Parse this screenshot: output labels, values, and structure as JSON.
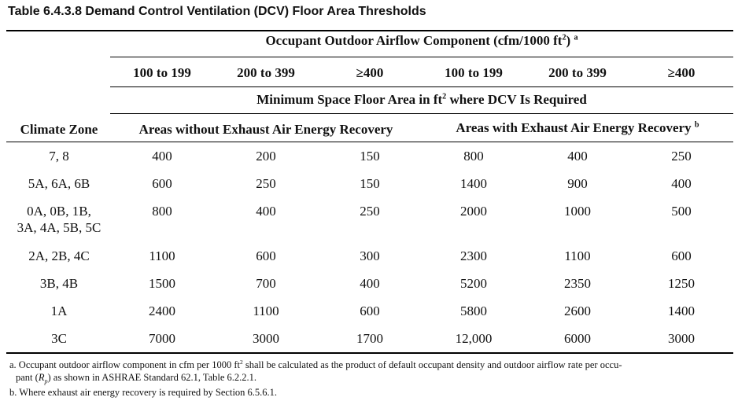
{
  "title": "Table 6.4.3.8 Demand Control Ventilation (DCV) Floor Area Thresholds",
  "header": {
    "group_label": "Occupant Outdoor Airflow Component (cfm/1000 ft",
    "group_sup": "2",
    "group_close": ")",
    "group_note": "a",
    "ranges": [
      "100 to 199",
      "200 to 399",
      "≥400",
      "100 to 199",
      "200 to 399",
      "≥400"
    ],
    "min_area_label": "Minimum Space Floor Area in ft",
    "min_area_sup": "2",
    "min_area_rest": " where DCV Is Required",
    "climate_zone_label": "Climate Zone",
    "without_recovery_label": "Areas without Exhaust Air Energy Recovery",
    "with_recovery_label": "Areas with Exhaust Air Energy Recovery",
    "with_recovery_note": "b"
  },
  "rows": [
    {
      "zone": "7, 8",
      "values": [
        "400",
        "200",
        "150",
        "800",
        "400",
        "250"
      ]
    },
    {
      "zone": "5A, 6A, 6B",
      "values": [
        "600",
        "250",
        "150",
        "1400",
        "900",
        "400"
      ]
    },
    {
      "zone_line1": "0A, 0B, 1B,",
      "zone_line2": "3A, 4A, 5B, 5C",
      "values": [
        "800",
        "400",
        "250",
        "2000",
        "1000",
        "500"
      ]
    },
    {
      "zone": "2A, 2B, 4C",
      "values": [
        "1100",
        "600",
        "300",
        "2300",
        "1100",
        "600"
      ]
    },
    {
      "zone": "3B, 4B",
      "values": [
        "1500",
        "700",
        "400",
        "5200",
        "2350",
        "1250"
      ]
    },
    {
      "zone": "1A",
      "values": [
        "2400",
        "1100",
        "600",
        "5800",
        "2600",
        "1400"
      ]
    },
    {
      "zone": "3C",
      "values": [
        "7000",
        "3000",
        "1700",
        "12,000",
        "6000",
        "3000"
      ]
    }
  ],
  "footnotes": {
    "a_part1": "a. Occupant outdoor airflow component in cfm per 1000 ft",
    "a_sup": "2",
    "a_part2": " shall be calculated as the product of default occupant density and outdoor airflow rate per occu-",
    "a_line2_pre": "pant (",
    "a_var": "R",
    "a_var_sub": "p",
    "a_line2_post": ") as shown in ASHRAE Standard 62.1, Table 6.2.2.1.",
    "b": "b. Where exhaust air energy recovery is required by Section 6.5.6.1."
  }
}
